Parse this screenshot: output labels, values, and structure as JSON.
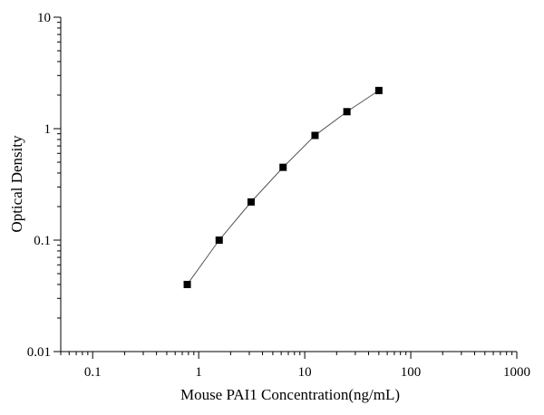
{
  "chart_data": {
    "type": "scatter",
    "xlabel": "Mouse PAI1 Concentration(ng/mL)",
    "ylabel": "Optical Density",
    "xscale": "log",
    "yscale": "log",
    "xlim": [
      0.05,
      1000
    ],
    "ylim": [
      0.01,
      10
    ],
    "x_ticks": [
      0.1,
      1,
      10,
      100,
      1000
    ],
    "x_tick_labels": [
      "0.1",
      "1",
      "10",
      "100",
      "1000"
    ],
    "y_ticks": [
      0.01,
      0.1,
      1,
      10
    ],
    "y_tick_labels": [
      "0.01",
      "0.1",
      "1",
      "10"
    ],
    "grid": false,
    "line_color": "#555555",
    "marker_color": "#000000",
    "series": [
      {
        "x": [
          0.78,
          1.56,
          3.12,
          6.25,
          12.5,
          25,
          50
        ],
        "y": [
          0.04,
          0.1,
          0.22,
          0.45,
          0.87,
          1.42,
          2.2
        ]
      }
    ]
  }
}
